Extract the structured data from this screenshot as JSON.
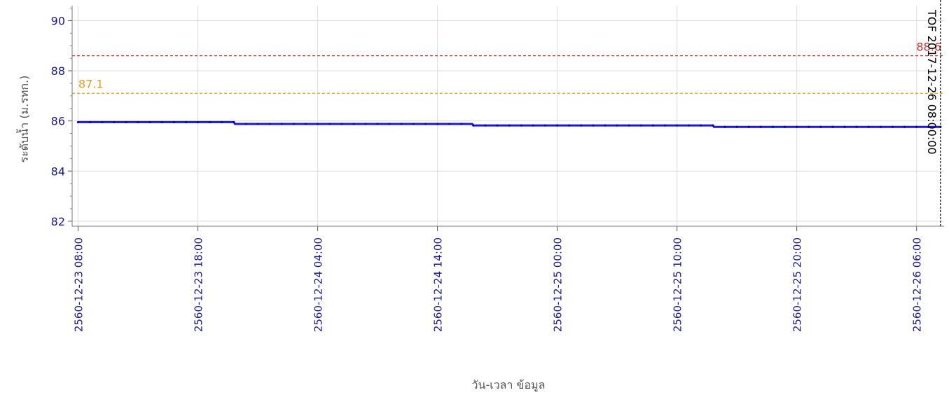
{
  "chart_data": {
    "type": "line",
    "title": "",
    "xlabel": "วัน-เวลา ข้อมูล",
    "ylabel": "ระดับน้ำ (ม.รทก.)",
    "ylim": [
      81.8,
      90.6
    ],
    "xlim_hours": [
      -0.5,
      72.3
    ],
    "grid": true,
    "y_ticks": [
      90,
      88,
      86,
      84,
      82
    ],
    "x_ticks": [
      {
        "hour": 0,
        "label": "2560-12-23 08:00"
      },
      {
        "hour": 10,
        "label": "2560-12-23 18:00"
      },
      {
        "hour": 20,
        "label": "2560-12-24 04:00"
      },
      {
        "hour": 30,
        "label": "2560-12-24 14:00"
      },
      {
        "hour": 40,
        "label": "2560-12-25 00:00"
      },
      {
        "hour": 50,
        "label": "2560-12-25 10:00"
      },
      {
        "hour": 60,
        "label": "2560-12-25 20:00"
      },
      {
        "hour": 70,
        "label": "2560-12-26 06:00"
      }
    ],
    "series": [
      {
        "color": "#1a1adb",
        "x_hours": [
          0,
          13,
          13.1,
          32.9,
          33,
          53,
          53.1,
          72
        ],
        "values": [
          85.95,
          85.95,
          85.88,
          85.88,
          85.82,
          85.82,
          85.76,
          85.76
        ]
      }
    ],
    "reference_lines": [
      {
        "value": 88.6,
        "label": "88.6",
        "color": "#c0302a"
      },
      {
        "value": 87.1,
        "label": "87.1",
        "color": "#e0a020"
      }
    ],
    "marker_line": {
      "hour": 72,
      "label": "TOF 2017-12-26 08:00:00",
      "color": "#000000"
    }
  }
}
